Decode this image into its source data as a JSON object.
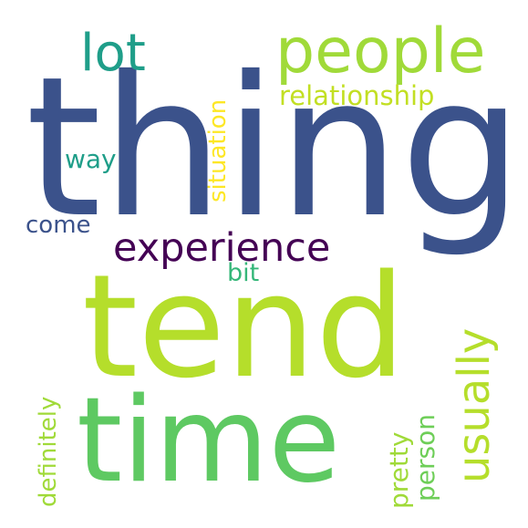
{
  "words": [
    {
      "key": "thing",
      "text": "thing",
      "color": "#3b528b"
    },
    {
      "key": "tend",
      "text": "tend",
      "color": "#b5de2b"
    },
    {
      "key": "time",
      "text": "time",
      "color": "#5ec962"
    },
    {
      "key": "people",
      "text": "people",
      "color": "#a0da39"
    },
    {
      "key": "lot",
      "text": "lot",
      "color": "#1f9e89"
    },
    {
      "key": "relationship",
      "text": "relationship",
      "color": "#c2df23"
    },
    {
      "key": "experience",
      "text": "experience",
      "color": "#440154"
    },
    {
      "key": "way",
      "text": "way",
      "color": "#1f9e89"
    },
    {
      "key": "come",
      "text": "come",
      "color": "#3b528b"
    },
    {
      "key": "bit",
      "text": "bit",
      "color": "#35b779"
    },
    {
      "key": "situation",
      "text": "situation",
      "color": "#fde725"
    },
    {
      "key": "usually",
      "text": "usually",
      "color": "#b5de2b"
    },
    {
      "key": "definitely",
      "text": "definitely",
      "color": "#a0da39"
    },
    {
      "key": "pretty",
      "text": "pretty",
      "color": "#a0da39"
    },
    {
      "key": "person",
      "text": "person",
      "color": "#6ece58"
    }
  ]
}
